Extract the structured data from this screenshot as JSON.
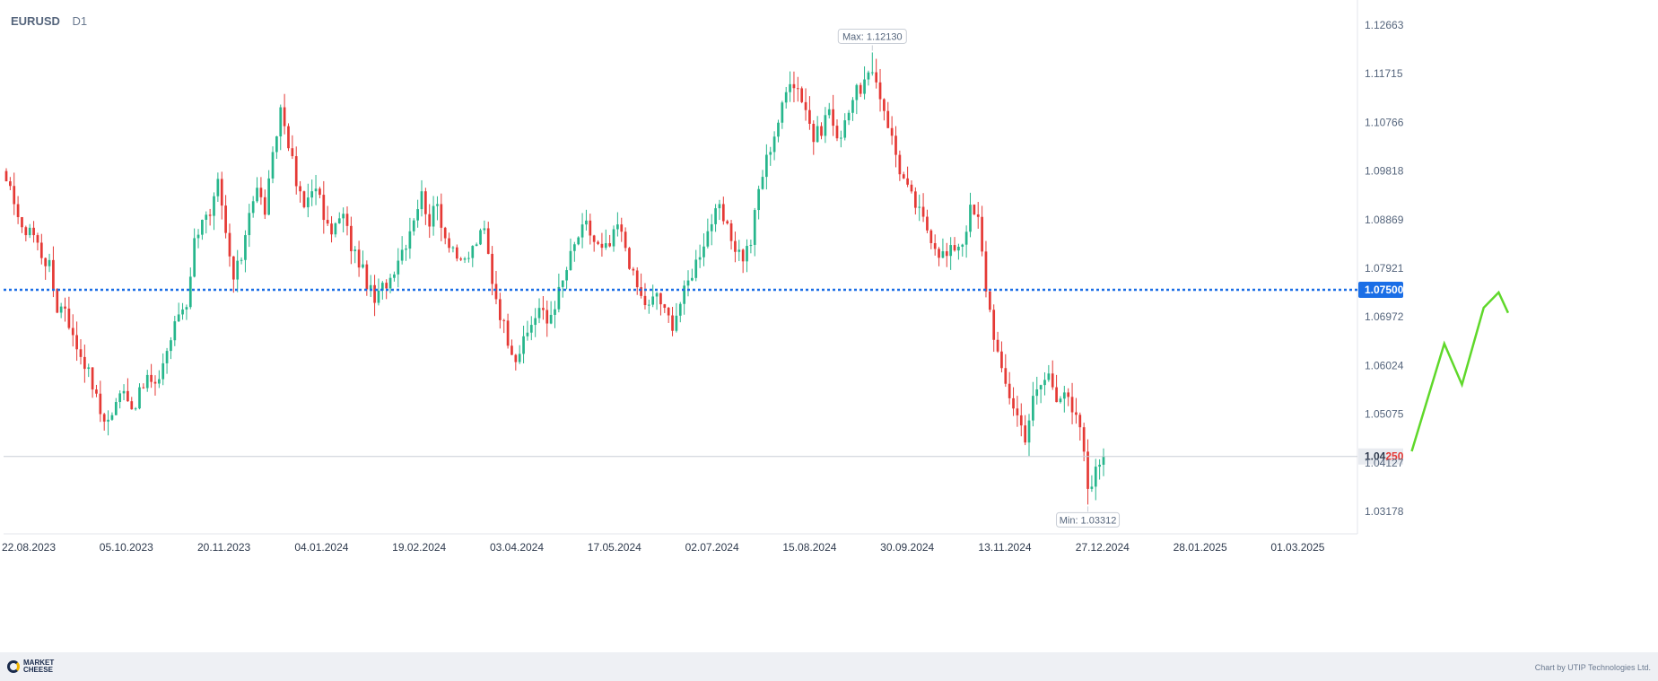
{
  "header": {
    "symbol": "EURUSD",
    "timeframe": "D1"
  },
  "footer": {
    "logo_line1": "MARKET",
    "logo_line2": "CHEESE",
    "credit": "Chart by UTIP Technologies Ltd."
  },
  "chart_data": {
    "type": "candlestick",
    "symbol": "EURUSD",
    "timeframe": "D1",
    "y_ticks": [
      1.12663,
      1.11715,
      1.10766,
      1.09818,
      1.08869,
      1.07921,
      1.06972,
      1.06024,
      1.05075,
      1.04127,
      1.03178
    ],
    "x_ticks": [
      "22.08.2023",
      "05.10.2023",
      "20.11.2023",
      "04.01.2024",
      "19.02.2024",
      "03.04.2024",
      "17.05.2024",
      "02.07.2024",
      "15.08.2024",
      "30.09.2024",
      "13.11.2024",
      "27.12.2024",
      "28.01.2025",
      "01.03.2025"
    ],
    "ylim": [
      1.0295,
      1.1295
    ],
    "max_label": "Max: 1.12130",
    "min_label": "Min: 1.03312",
    "max_value": 1.1213,
    "min_value": 1.03312,
    "level_line": {
      "value": 1.075,
      "label": "1.07500",
      "color": "#1a6ee6"
    },
    "current_price": {
      "value": 1.0425,
      "label_prefix": "1.04",
      "label_suffix": "250",
      "color": "#e53935"
    },
    "colors": {
      "up": "#26b68c",
      "down": "#e53935",
      "forecast": "#5fd82a"
    },
    "price_path": [
      [
        0,
        1.095
      ],
      [
        2,
        1.093
      ],
      [
        4,
        1.086
      ],
      [
        6,
        1.0875
      ],
      [
        9,
        1.082
      ],
      [
        11,
        1.0795
      ],
      [
        13,
        1.0715
      ],
      [
        15,
        1.072
      ],
      [
        17,
        1.0655
      ],
      [
        20,
        1.061
      ],
      [
        22,
        1.0565
      ],
      [
        24,
        1.051
      ],
      [
        26,
        1.0495
      ],
      [
        28,
        1.0525
      ],
      [
        30,
        1.0565
      ],
      [
        32,
        1.052
      ],
      [
        34,
        1.0545
      ],
      [
        36,
        1.058
      ],
      [
        38,
        1.0555
      ],
      [
        40,
        1.061
      ],
      [
        42,
        1.0655
      ],
      [
        44,
        1.0705
      ],
      [
        46,
        1.0725
      ],
      [
        48,
        1.0845
      ],
      [
        50,
        1.0895
      ],
      [
        52,
        1.0885
      ],
      [
        54,
        1.0955
      ],
      [
        56,
        1.0855
      ],
      [
        58,
        1.077
      ],
      [
        60,
        1.0815
      ],
      [
        62,
        1.091
      ],
      [
        64,
        1.0945
      ],
      [
        66,
        1.0905
      ],
      [
        68,
        1.1005
      ],
      [
        70,
        1.1105
      ],
      [
        72,
        1.104
      ],
      [
        74,
        1.0955
      ],
      [
        76,
        1.091
      ],
      [
        78,
        1.0955
      ],
      [
        80,
        1.0925
      ],
      [
        82,
        1.0865
      ],
      [
        84,
        1.0875
      ],
      [
        86,
        1.0895
      ],
      [
        88,
        1.0835
      ],
      [
        90,
        1.0805
      ],
      [
        92,
        1.0765
      ],
      [
        94,
        1.0725
      ],
      [
        96,
        1.0755
      ],
      [
        98,
        1.0775
      ],
      [
        100,
        1.0815
      ],
      [
        102,
        1.0845
      ],
      [
        104,
        1.0895
      ],
      [
        106,
        1.0935
      ],
      [
        108,
        1.0885
      ],
      [
        110,
        1.0915
      ],
      [
        112,
        1.0855
      ],
      [
        114,
        1.0835
      ],
      [
        116,
        1.0795
      ],
      [
        118,
        1.0815
      ],
      [
        120,
        1.0845
      ],
      [
        122,
        1.0865
      ],
      [
        124,
        1.077
      ],
      [
        126,
        1.0705
      ],
      [
        128,
        1.0655
      ],
      [
        130,
        1.062
      ],
      [
        132,
        1.0645
      ],
      [
        134,
        1.0685
      ],
      [
        136,
        1.0715
      ],
      [
        138,
        1.0685
      ],
      [
        140,
        1.0725
      ],
      [
        142,
        1.0765
      ],
      [
        144,
        1.0815
      ],
      [
        146,
        1.0855
      ],
      [
        148,
        1.0875
      ],
      [
        150,
        1.0845
      ],
      [
        152,
        1.0825
      ],
      [
        154,
        1.0835
      ],
      [
        156,
        1.0875
      ],
      [
        158,
        1.0835
      ],
      [
        160,
        1.0775
      ],
      [
        162,
        1.0735
      ],
      [
        164,
        1.0715
      ],
      [
        166,
        1.0745
      ],
      [
        168,
        1.0705
      ],
      [
        170,
        1.0685
      ],
      [
        172,
        1.0725
      ],
      [
        174,
        1.0765
      ],
      [
        176,
        1.0805
      ],
      [
        178,
        1.0845
      ],
      [
        180,
        1.0885
      ],
      [
        182,
        1.0905
      ],
      [
        184,
        1.0865
      ],
      [
        186,
        1.0835
      ],
      [
        188,
        1.0815
      ],
      [
        190,
        1.0845
      ],
      [
        192,
        1.0945
      ],
      [
        194,
        1.1005
      ],
      [
        196,
        1.1055
      ],
      [
        198,
        1.1105
      ],
      [
        200,
        1.1165
      ],
      [
        202,
        1.1145
      ],
      [
        204,
        1.1105
      ],
      [
        206,
        1.1045
      ],
      [
        208,
        1.1065
      ],
      [
        210,
        1.1105
      ],
      [
        212,
        1.1035
      ],
      [
        214,
        1.1085
      ],
      [
        216,
        1.1125
      ],
      [
        218,
        1.1145
      ],
      [
        220,
        1.1165
      ],
      [
        222,
        1.1155
      ],
      [
        224,
        1.1105
      ],
      [
        226,
        1.1045
      ],
      [
        228,
        1.0985
      ],
      [
        230,
        1.0945
      ],
      [
        232,
        1.0915
      ],
      [
        234,
        1.0885
      ],
      [
        236,
        1.0855
      ],
      [
        238,
        1.0825
      ],
      [
        240,
        1.0815
      ],
      [
        242,
        1.0835
      ],
      [
        244,
        1.0845
      ],
      [
        246,
        1.0905
      ],
      [
        248,
        1.0885
      ],
      [
        250,
        1.0755
      ],
      [
        252,
        1.0665
      ],
      [
        254,
        1.0585
      ],
      [
        256,
        1.0545
      ],
      [
        258,
        1.0505
      ],
      [
        260,
        1.0465
      ],
      [
        262,
        1.0535
      ],
      [
        264,
        1.0565
      ],
      [
        266,
        1.0585
      ],
      [
        268,
        1.0545
      ],
      [
        270,
        1.0555
      ],
      [
        272,
        1.0505
      ],
      [
        274,
        1.0485
      ],
      [
        276,
        1.0365
      ],
      [
        278,
        1.0395
      ],
      [
        280,
        1.0435
      ]
    ],
    "forecast_path": [
      [
        1.04,
        1.0435
      ],
      [
        1.064,
        1.0645
      ],
      [
        1.077,
        1.0565
      ],
      [
        1.093,
        1.0715
      ],
      [
        1.104,
        1.0745
      ],
      [
        1.111,
        1.0705
      ]
    ]
  }
}
